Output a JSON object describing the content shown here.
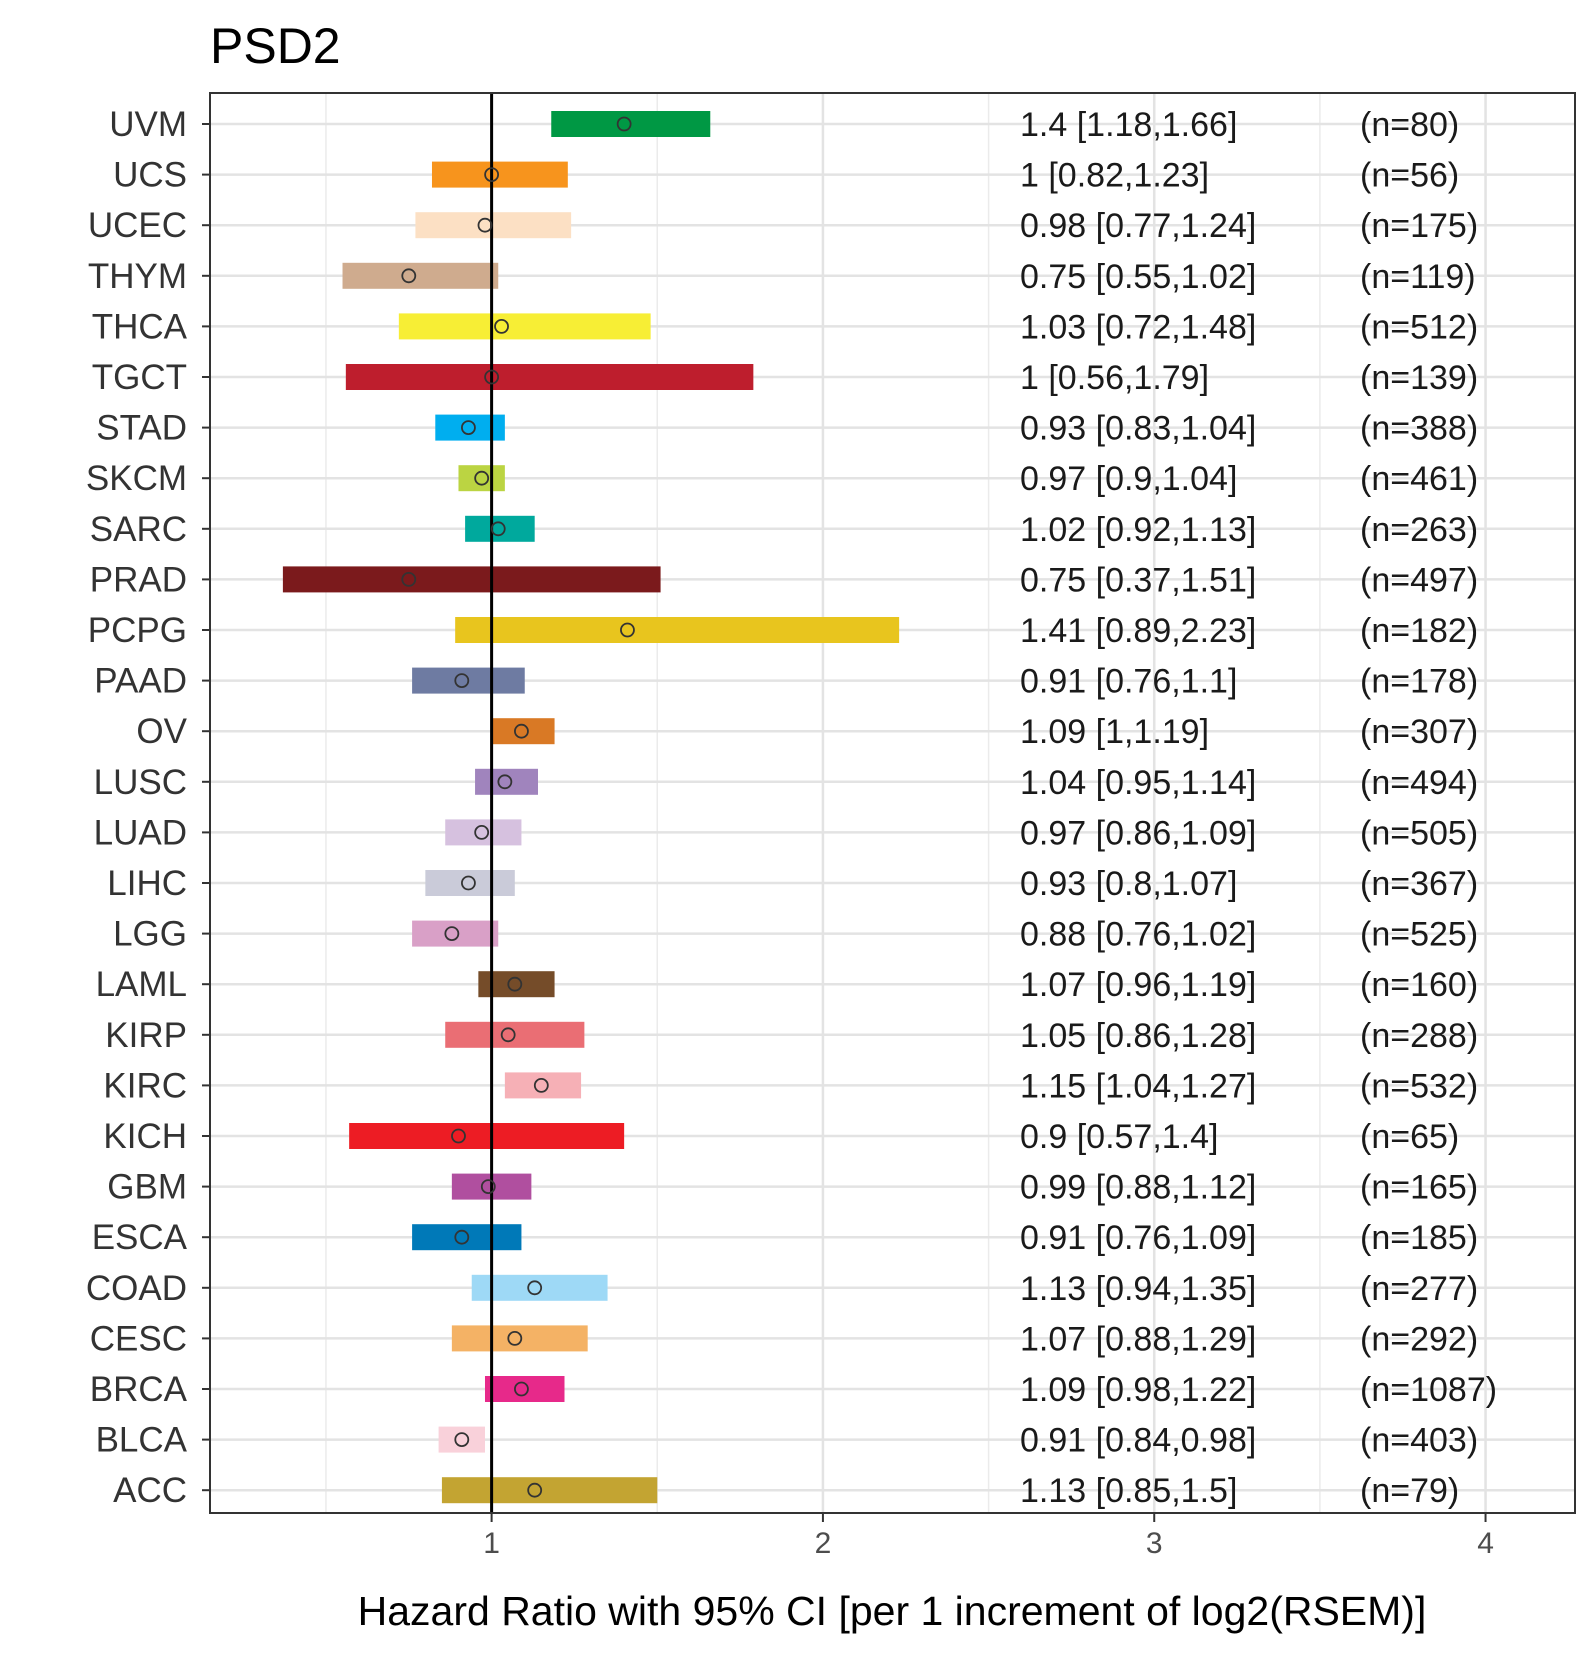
{
  "chart_data": {
    "type": "forest",
    "title": "PSD2",
    "xlabel": "Hazard Ratio with 95% CI [per 1 increment of log2(RSEM)]",
    "ylabel": "",
    "xlim": [
      0.15,
      4.27
    ],
    "xticks": [
      1,
      2,
      3,
      4
    ],
    "xtick_labels": [
      "1",
      "2",
      "3",
      "4"
    ],
    "reference_line": 1,
    "grid": true,
    "rows": [
      {
        "label": "UVM",
        "hr": 1.4,
        "lower": 1.18,
        "upper": 1.66,
        "text": "1.4 [1.18,1.66]",
        "n": "(n=80)",
        "color": "#009844"
      },
      {
        "label": "UCS",
        "hr": 1,
        "lower": 0.82,
        "upper": 1.23,
        "text": "1 [0.82,1.23]",
        "n": "(n=56)",
        "color": "#F7941D"
      },
      {
        "label": "UCEC",
        "hr": 0.98,
        "lower": 0.77,
        "upper": 1.24,
        "text": "0.98 [0.77,1.24]",
        "n": "(n=175)",
        "color": "#FCE0C4"
      },
      {
        "label": "THYM",
        "hr": 0.75,
        "lower": 0.55,
        "upper": 1.02,
        "text": "0.75 [0.55,1.02]",
        "n": "(n=119)",
        "color": "#CFAB8E"
      },
      {
        "label": "THCA",
        "hr": 1.03,
        "lower": 0.72,
        "upper": 1.48,
        "text": "1.03 [0.72,1.48]",
        "n": "(n=512)",
        "color": "#F7EE35"
      },
      {
        "label": "TGCT",
        "hr": 1,
        "lower": 0.56,
        "upper": 1.79,
        "text": "1 [0.56,1.79]",
        "n": "(n=139)",
        "color": "#BE1E2D"
      },
      {
        "label": "STAD",
        "hr": 0.93,
        "lower": 0.83,
        "upper": 1.04,
        "text": "0.93 [0.83,1.04]",
        "n": "(n=388)",
        "color": "#00AEEF"
      },
      {
        "label": "SKCM",
        "hr": 0.97,
        "lower": 0.9,
        "upper": 1.04,
        "text": "0.97 [0.9,1.04]",
        "n": "(n=461)",
        "color": "#BBD442"
      },
      {
        "label": "SARC",
        "hr": 1.02,
        "lower": 0.92,
        "upper": 1.13,
        "text": "1.02 [0.92,1.13]",
        "n": "(n=263)",
        "color": "#00A99D"
      },
      {
        "label": "PRAD",
        "hr": 0.75,
        "lower": 0.37,
        "upper": 1.51,
        "text": "0.75 [0.37,1.51]",
        "n": "(n=497)",
        "color": "#7B1A1C"
      },
      {
        "label": "PCPG",
        "hr": 1.41,
        "lower": 0.89,
        "upper": 2.23,
        "text": "1.41 [0.89,2.23]",
        "n": "(n=182)",
        "color": "#E8C51E"
      },
      {
        "label": "PAAD",
        "hr": 0.91,
        "lower": 0.76,
        "upper": 1.1,
        "text": "0.91 [0.76,1.1]",
        "n": "(n=178)",
        "color": "#6E7BA2"
      },
      {
        "label": "OV",
        "hr": 1.09,
        "lower": 1,
        "upper": 1.19,
        "text": "1.09 [1,1.19]",
        "n": "(n=307)",
        "color": "#D97925"
      },
      {
        "label": "LUSC",
        "hr": 1.04,
        "lower": 0.95,
        "upper": 1.14,
        "text": "1.04 [0.95,1.14]",
        "n": "(n=494)",
        "color": "#A084BD"
      },
      {
        "label": "LUAD",
        "hr": 0.97,
        "lower": 0.86,
        "upper": 1.09,
        "text": "0.97 [0.86,1.09]",
        "n": "(n=505)",
        "color": "#D6C1DF"
      },
      {
        "label": "LIHC",
        "hr": 0.93,
        "lower": 0.8,
        "upper": 1.07,
        "text": "0.93 [0.8,1.07]",
        "n": "(n=367)",
        "color": "#CACBD9"
      },
      {
        "label": "LGG",
        "hr": 0.88,
        "lower": 0.76,
        "upper": 1.02,
        "text": "0.88 [0.76,1.02]",
        "n": "(n=525)",
        "color": "#D9A0C7"
      },
      {
        "label": "LAML",
        "hr": 1.07,
        "lower": 0.96,
        "upper": 1.19,
        "text": "1.07 [0.96,1.19]",
        "n": "(n=160)",
        "color": "#754C29"
      },
      {
        "label": "KIRP",
        "hr": 1.05,
        "lower": 0.86,
        "upper": 1.28,
        "text": "1.05 [0.86,1.28]",
        "n": "(n=288)",
        "color": "#EA6E74"
      },
      {
        "label": "KIRC",
        "hr": 1.15,
        "lower": 1.04,
        "upper": 1.27,
        "text": "1.15 [1.04,1.27]",
        "n": "(n=532)",
        "color": "#F6B0B6"
      },
      {
        "label": "KICH",
        "hr": 0.9,
        "lower": 0.57,
        "upper": 1.4,
        "text": "0.9 [0.57,1.4]",
        "n": "(n=65)",
        "color": "#ED1C24"
      },
      {
        "label": "GBM",
        "hr": 0.99,
        "lower": 0.88,
        "upper": 1.12,
        "text": "0.99 [0.88,1.12]",
        "n": "(n=165)",
        "color": "#B04F9F"
      },
      {
        "label": "ESCA",
        "hr": 0.91,
        "lower": 0.76,
        "upper": 1.09,
        "text": "0.91 [0.76,1.09]",
        "n": "(n=185)",
        "color": "#0079B8"
      },
      {
        "label": "COAD",
        "hr": 1.13,
        "lower": 0.94,
        "upper": 1.35,
        "text": "1.13 [0.94,1.35]",
        "n": "(n=277)",
        "color": "#9ED9F6"
      },
      {
        "label": "CESC",
        "hr": 1.07,
        "lower": 0.88,
        "upper": 1.29,
        "text": "1.07 [0.88,1.29]",
        "n": "(n=292)",
        "color": "#F4B265"
      },
      {
        "label": "BRCA",
        "hr": 1.09,
        "lower": 0.98,
        "upper": 1.22,
        "text": "1.09 [0.98,1.22]",
        "n": "(n=1087)",
        "color": "#E7298A"
      },
      {
        "label": "BLCA",
        "hr": 0.91,
        "lower": 0.84,
        "upper": 0.98,
        "text": "0.91 [0.84,0.98]",
        "n": "(n=403)",
        "color": "#F9D1DA"
      },
      {
        "label": "ACC",
        "hr": 1.13,
        "lower": 0.85,
        "upper": 1.5,
        "text": "1.13 [0.85,1.5]",
        "n": "(n=79)",
        "color": "#C3A432"
      }
    ]
  }
}
